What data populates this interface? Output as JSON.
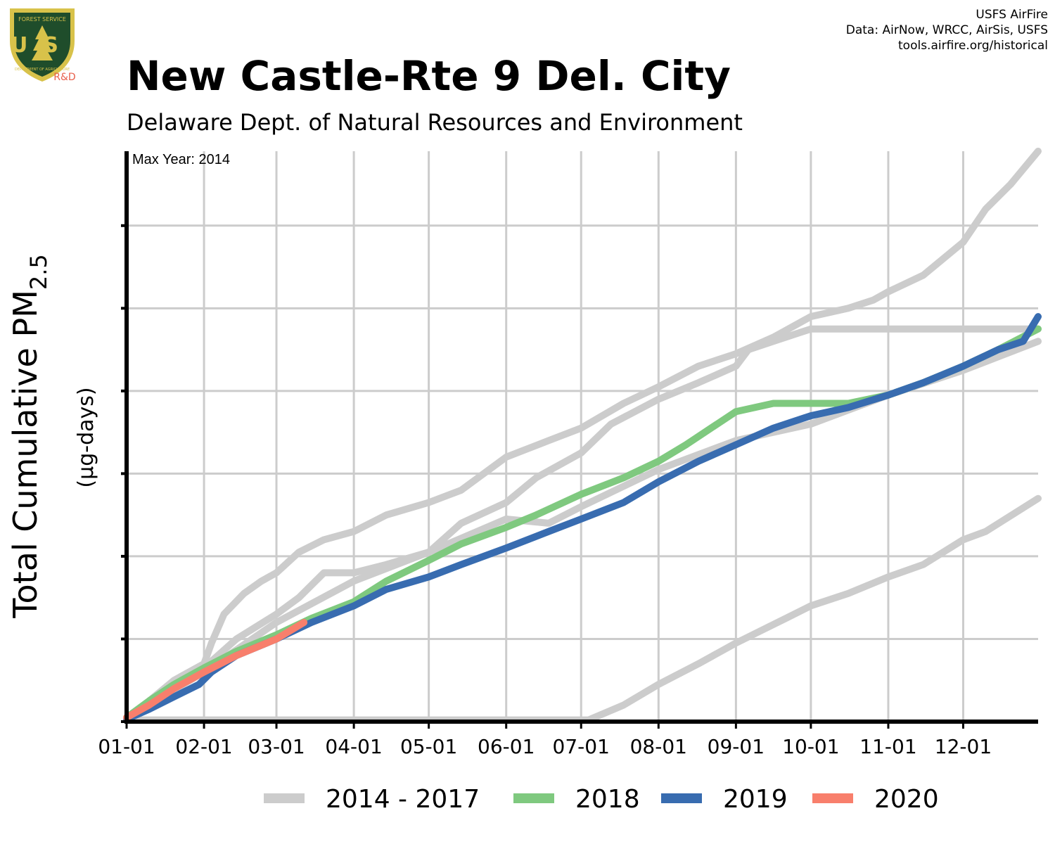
{
  "header": {
    "title": "New Castle-Rte 9 Del. City",
    "subtitle": "Delaware Dept. of Natural Resources and Environment",
    "credits": [
      "USFS AirFire",
      "Data: AirNow, WRCC, AirSis, USFS",
      "tools.airfire.org/historical"
    ],
    "logo": {
      "icon": "usfs-shield-logo",
      "letters": "US",
      "top_text": "FOREST SERVICE",
      "bottom_text": "DEPARTMENT OF AGRICULTURE",
      "badge": "R&D",
      "colors": {
        "shield": "#1f4d2b",
        "rim": "#d8c24a",
        "badge": "#e8604c"
      }
    }
  },
  "chart_data": {
    "type": "line",
    "title": "New Castle-Rte 9 Del. City",
    "subtitle": "Delaware Dept. of Natural Resources and Environment",
    "ylabel_main": "Total Cumulative PM",
    "ylabel_sub": "2.5",
    "yunit": "(µg-days)",
    "annotation": "Max Year: 2014",
    "grid": true,
    "xlim": [
      1,
      366
    ],
    "ylim": [
      0,
      6.9
    ],
    "y_ticks_shown": false,
    "x_ticks": [
      {
        "label": "01-01",
        "doy": 1
      },
      {
        "label": "02-01",
        "doy": 32
      },
      {
        "label": "03-01",
        "doy": 61
      },
      {
        "label": "04-01",
        "doy": 92
      },
      {
        "label": "05-01",
        "doy": 122
      },
      {
        "label": "06-01",
        "doy": 153
      },
      {
        "label": "07-01",
        "doy": 183
      },
      {
        "label": "08-01",
        "doy": 214
      },
      {
        "label": "09-01",
        "doy": 245
      },
      {
        "label": "10-01",
        "doy": 275
      },
      {
        "label": "11-01",
        "doy": 306
      },
      {
        "label": "12-01",
        "doy": 336
      }
    ],
    "legend": {
      "position": "bottom",
      "items": [
        "2014 - 2017",
        "2018",
        "2019",
        "2020"
      ]
    },
    "series": [
      {
        "name": "2014 - 2017",
        "color": "#cccccc",
        "points": [
          [
            1,
            0.05
          ],
          [
            10,
            0.25
          ],
          [
            20,
            0.5
          ],
          [
            32,
            0.7
          ],
          [
            35,
            0.95
          ],
          [
            40,
            1.3
          ],
          [
            48,
            1.55
          ],
          [
            55,
            1.7
          ],
          [
            61,
            1.8
          ],
          [
            70,
            2.05
          ],
          [
            80,
            2.2
          ],
          [
            92,
            2.3
          ],
          [
            105,
            2.5
          ],
          [
            122,
            2.65
          ],
          [
            135,
            2.8
          ],
          [
            153,
            3.2
          ],
          [
            170,
            3.4
          ],
          [
            183,
            3.55
          ],
          [
            200,
            3.85
          ],
          [
            214,
            4.05
          ],
          [
            230,
            4.3
          ],
          [
            245,
            4.45
          ],
          [
            260,
            4.65
          ],
          [
            275,
            4.9
          ],
          [
            290,
            5.0
          ],
          [
            300,
            5.1
          ],
          [
            306,
            5.2
          ],
          [
            320,
            5.4
          ],
          [
            336,
            5.8
          ],
          [
            345,
            6.2
          ],
          [
            355,
            6.5
          ],
          [
            366,
            6.9
          ]
        ]
      },
      {
        "name": "2014 - 2017",
        "color": "#cccccc",
        "points": [
          [
            1,
            0.05
          ],
          [
            15,
            0.35
          ],
          [
            32,
            0.65
          ],
          [
            45,
            1.0
          ],
          [
            61,
            1.3
          ],
          [
            70,
            1.5
          ],
          [
            80,
            1.8
          ],
          [
            92,
            1.8
          ],
          [
            105,
            1.9
          ],
          [
            122,
            2.05
          ],
          [
            135,
            2.4
          ],
          [
            153,
            2.65
          ],
          [
            165,
            2.95
          ],
          [
            183,
            3.25
          ],
          [
            195,
            3.6
          ],
          [
            214,
            3.9
          ],
          [
            230,
            4.1
          ],
          [
            245,
            4.3
          ],
          [
            250,
            4.5
          ],
          [
            260,
            4.6
          ],
          [
            275,
            4.75
          ],
          [
            366,
            4.75
          ]
        ]
      },
      {
        "name": "2014 - 2017",
        "color": "#cccccc",
        "points": [
          [
            1,
            0.02
          ],
          [
            143,
            0.02
          ],
          [
            186,
            0.02
          ],
          [
            200,
            0.2
          ],
          [
            214,
            0.45
          ],
          [
            230,
            0.7
          ],
          [
            245,
            0.95
          ],
          [
            255,
            1.1
          ],
          [
            265,
            1.25
          ],
          [
            275,
            1.4
          ],
          [
            290,
            1.55
          ],
          [
            306,
            1.75
          ],
          [
            320,
            1.9
          ],
          [
            336,
            2.2
          ],
          [
            345,
            2.3
          ],
          [
            366,
            2.7
          ]
        ]
      },
      {
        "name": "2014 - 2017",
        "color": "#cccccc",
        "points": [
          [
            1,
            0.05
          ],
          [
            32,
            0.6
          ],
          [
            61,
            1.2
          ],
          [
            92,
            1.7
          ],
          [
            122,
            2.05
          ],
          [
            153,
            2.45
          ],
          [
            170,
            2.4
          ],
          [
            183,
            2.6
          ],
          [
            214,
            3.05
          ],
          [
            245,
            3.4
          ],
          [
            275,
            3.6
          ],
          [
            306,
            3.95
          ],
          [
            336,
            4.25
          ],
          [
            366,
            4.6
          ]
        ]
      },
      {
        "name": "2018",
        "color": "#7fc97f",
        "points": [
          [
            1,
            0.05
          ],
          [
            10,
            0.25
          ],
          [
            20,
            0.45
          ],
          [
            32,
            0.65
          ],
          [
            45,
            0.85
          ],
          [
            61,
            1.05
          ],
          [
            75,
            1.25
          ],
          [
            92,
            1.45
          ],
          [
            105,
            1.7
          ],
          [
            122,
            1.95
          ],
          [
            135,
            2.15
          ],
          [
            153,
            2.35
          ],
          [
            165,
            2.5
          ],
          [
            183,
            2.75
          ],
          [
            200,
            2.95
          ],
          [
            214,
            3.15
          ],
          [
            225,
            3.35
          ],
          [
            235,
            3.55
          ],
          [
            245,
            3.75
          ],
          [
            260,
            3.85
          ],
          [
            275,
            3.85
          ],
          [
            290,
            3.85
          ],
          [
            306,
            3.95
          ],
          [
            320,
            4.1
          ],
          [
            336,
            4.3
          ],
          [
            350,
            4.5
          ],
          [
            366,
            4.75
          ]
        ]
      },
      {
        "name": "2019",
        "color": "#386cb0",
        "points": [
          [
            1,
            0.03
          ],
          [
            10,
            0.15
          ],
          [
            20,
            0.3
          ],
          [
            30,
            0.45
          ],
          [
            35,
            0.6
          ],
          [
            45,
            0.8
          ],
          [
            61,
            1.0
          ],
          [
            75,
            1.2
          ],
          [
            92,
            1.4
          ],
          [
            105,
            1.6
          ],
          [
            122,
            1.75
          ],
          [
            135,
            1.9
          ],
          [
            153,
            2.1
          ],
          [
            170,
            2.3
          ],
          [
            183,
            2.45
          ],
          [
            200,
            2.65
          ],
          [
            214,
            2.9
          ],
          [
            230,
            3.15
          ],
          [
            245,
            3.35
          ],
          [
            260,
            3.55
          ],
          [
            275,
            3.7
          ],
          [
            290,
            3.8
          ],
          [
            306,
            3.95
          ],
          [
            320,
            4.1
          ],
          [
            336,
            4.3
          ],
          [
            350,
            4.5
          ],
          [
            360,
            4.6
          ],
          [
            366,
            4.9
          ]
        ]
      },
      {
        "name": "2020",
        "color": "#f87f6c",
        "points": [
          [
            1,
            0.05
          ],
          [
            10,
            0.2
          ],
          [
            20,
            0.4
          ],
          [
            32,
            0.6
          ],
          [
            45,
            0.8
          ],
          [
            61,
            1.0
          ],
          [
            72,
            1.2
          ]
        ]
      }
    ]
  }
}
